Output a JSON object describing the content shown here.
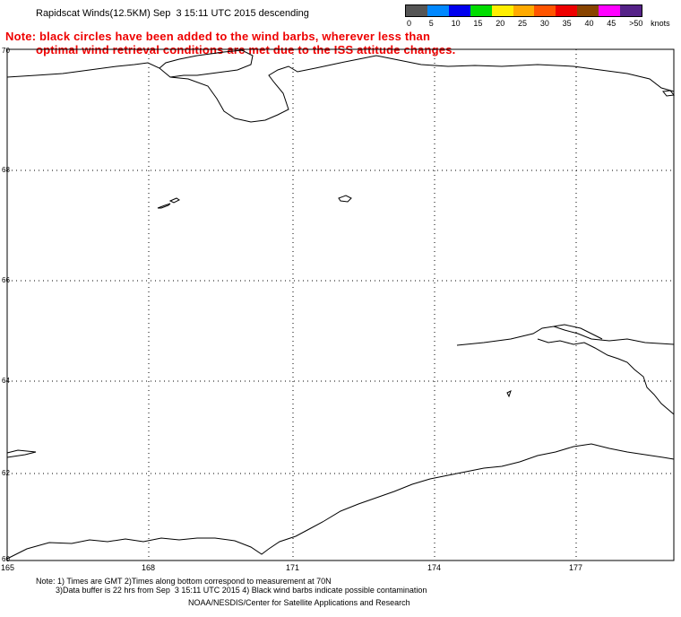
{
  "title": "Rapidscat Winds(12.5KM) Sep  3 15:11 UTC 2015 descending",
  "note": {
    "line1": "Note: black circles have been added to the wind barbs, wherever less than",
    "line2": "optimal wind retrieval conditions are met due to the ISS attitude changes."
  },
  "wind_scale": {
    "unit": "knots",
    "labels": [
      "0",
      "5",
      "10",
      "15",
      "20",
      "25",
      "30",
      "35",
      "40",
      "45",
      ">50"
    ],
    "colors": [
      "#555555",
      "#0088ff",
      "#0000ee",
      "#00dd00",
      "#ffee00",
      "#ffaa00",
      "#ff5500",
      "#ee0000",
      "#884400",
      "#ff00ff",
      "#552288"
    ]
  },
  "map": {
    "lat_labels": [
      "70",
      "68",
      "66",
      "64",
      "62",
      "60"
    ],
    "lon_labels": [
      "165",
      "168",
      "171",
      "174",
      "177"
    ]
  },
  "footer": {
    "line1": "Note: 1) Times are GMT 2)Times along bottom correspond to measurement at 70N",
    "line2": "3)Data buffer is 22 hrs from Sep  3 15:11 UTC 2015 4) Black wind barbs indicate possible contamination",
    "line3": "NOAA/NESDIS/Center for Satellite Applications and Research"
  }
}
